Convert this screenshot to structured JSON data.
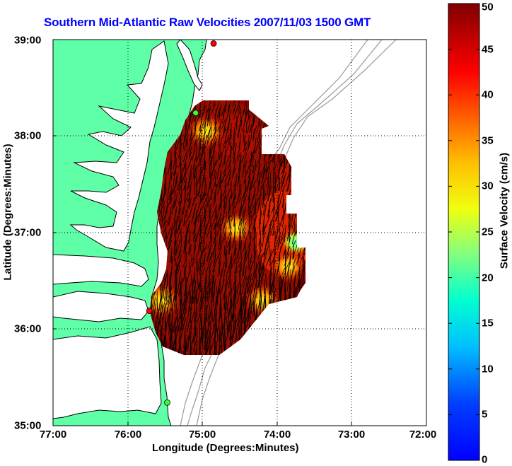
{
  "title": "Southern Mid-Atlantic Raw Velocities 2007/11/03 1500 GMT",
  "x_axis": {
    "label": "Longitude (Degrees:Minutes)",
    "ticks": [
      "77:00",
      "76:00",
      "75:00",
      "74:00",
      "73:00",
      "72:00"
    ]
  },
  "y_axis": {
    "label": "Latitude (Degrees:Minutes)",
    "ticks": [
      "39:00",
      "38:00",
      "37:00",
      "36:00",
      "35:00"
    ]
  },
  "colorbar": {
    "label": "Surface Velocity (cm/s)",
    "ticks": [
      "50",
      "45",
      "40",
      "35",
      "30",
      "25",
      "20",
      "15",
      "10",
      "5",
      "0"
    ],
    "range": [
      0,
      50
    ],
    "colormap": "jet"
  },
  "chart_data": {
    "type": "heatmap",
    "title": "Southern Mid-Atlantic Raw Velocities 2007/11/03 1500 GMT",
    "xlabel": "Longitude (Degrees:Minutes)",
    "ylabel": "Latitude (Degrees:Minutes)",
    "xlim": [
      -77,
      -72
    ],
    "ylim": [
      35,
      39
    ],
    "colorbar_range": [
      0,
      50
    ],
    "grid": true,
    "colors": {
      "land": "#5fffa8",
      "water": "#ffffff",
      "bathymetry_contour": "#999999",
      "coastline": "#000000",
      "vectors": "#000000",
      "station_red": "#ff0000",
      "station_green": "#33ff33"
    },
    "stations": [
      {
        "lon": -74.85,
        "lat": 38.96,
        "color": "red"
      },
      {
        "lon": -75.09,
        "lat": 38.24,
        "color": "green"
      },
      {
        "lon": -75.71,
        "lat": 36.19,
        "color": "red"
      },
      {
        "lon": -75.47,
        "lat": 35.24,
        "color": "green"
      }
    ],
    "velocity_hotspots": [
      {
        "lon": -74.95,
        "lat": 38.05,
        "speed": 28
      },
      {
        "lon": -74.55,
        "lat": 37.05,
        "speed": 26
      },
      {
        "lon": -73.85,
        "lat": 36.65,
        "speed": 25
      },
      {
        "lon": -74.2,
        "lat": 36.3,
        "speed": 27
      },
      {
        "lon": -75.55,
        "lat": 36.3,
        "speed": 30
      },
      {
        "lon": -73.75,
        "lat": 36.9,
        "speed": 18
      }
    ]
  }
}
